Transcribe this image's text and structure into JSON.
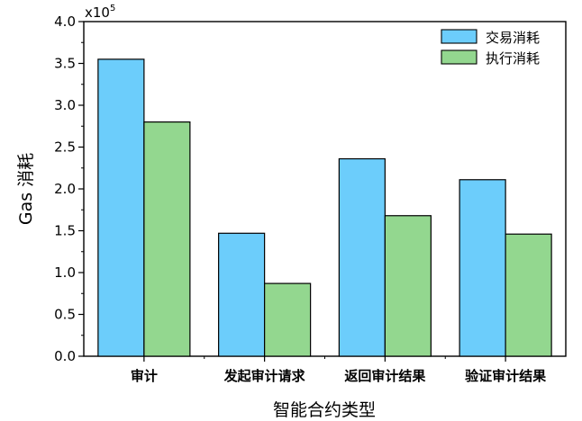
{
  "chart_data": {
    "type": "bar",
    "xlabel": "智能合约类型",
    "ylabel": "Gas 消耗",
    "multiplier": {
      "base": "x10",
      "exp": "5"
    },
    "ylim": [
      0,
      4
    ],
    "yticks": [
      "0.0",
      "0.5",
      "1.0",
      "1.5",
      "2.0",
      "2.5",
      "3.0",
      "3.5",
      "4.0"
    ],
    "categories": [
      "审计",
      "发起审计请求",
      "返回审计结果",
      "验证审计结果"
    ],
    "series": [
      {
        "name": "交易消耗",
        "color": "#6ccdfb",
        "values": [
          3.55,
          1.47,
          2.36,
          2.11
        ]
      },
      {
        "name": "执行消耗",
        "color": "#93d78f",
        "values": [
          2.8,
          0.87,
          1.68,
          1.46
        ]
      }
    ],
    "grid": false,
    "legend": "top-right"
  }
}
